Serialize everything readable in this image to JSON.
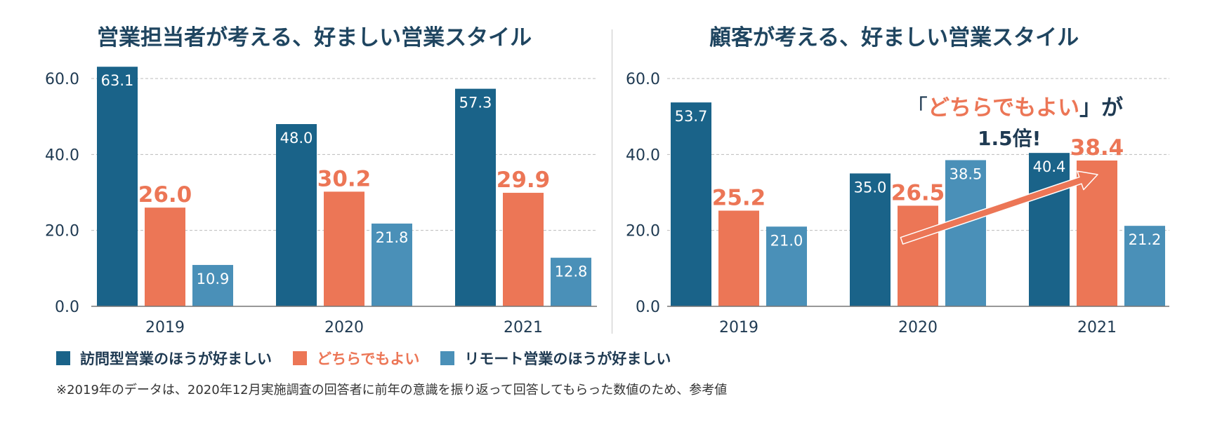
{
  "colors": {
    "visit": "#1a6389",
    "either": "#ec7656",
    "remote": "#4a90b8",
    "title": "#1f4560",
    "axis_text": "#1f3a52",
    "grid": "#bbbbbb"
  },
  "chart_data": [
    {
      "type": "bar",
      "title": "営業担当者が考える、好ましい営業スタイル",
      "categories": [
        "2019",
        "2020",
        "2021"
      ],
      "ylim": [
        0,
        60
      ],
      "yticks": [
        "0.0",
        "20.0",
        "40.0",
        "60.0"
      ],
      "grid": true,
      "series": [
        {
          "name": "訪問型営業のほうが好ましい",
          "values": [
            63.1,
            48.0,
            57.3
          ],
          "labels": [
            "63.1",
            "48.0",
            "57.3"
          ]
        },
        {
          "name": "どちらでもよい",
          "values": [
            26.0,
            30.2,
            29.9
          ],
          "labels": [
            "26.0",
            "30.2",
            "29.9"
          ]
        },
        {
          "name": "リモート営業のほうが好ましい",
          "values": [
            10.9,
            21.8,
            12.8
          ],
          "labels": [
            "10.9",
            "21.8",
            "12.8"
          ]
        }
      ]
    },
    {
      "type": "bar",
      "title": "顧客が考える、好ましい営業スタイル",
      "categories": [
        "2019",
        "2020",
        "2021"
      ],
      "ylim": [
        0,
        60
      ],
      "yticks": [
        "0.0",
        "20.0",
        "40.0",
        "60.0"
      ],
      "grid": true,
      "series": [
        {
          "name": "訪問型営業のほうが好ましい",
          "values": [
            53.7,
            35.0,
            40.4
          ],
          "labels": [
            "53.7",
            "35.0",
            "40.4"
          ]
        },
        {
          "name": "どちらでもよい",
          "values": [
            25.2,
            26.5,
            38.4
          ],
          "labels": [
            "25.2",
            "26.5",
            "38.4"
          ]
        },
        {
          "name": "リモート営業のほうが好ましい",
          "values": [
            21.0,
            38.5,
            21.2
          ],
          "labels": [
            "21.0",
            "38.5",
            "21.2"
          ]
        }
      ],
      "annotations": [
        {
          "text_open": "「",
          "text_highlight": "どちらでもよい",
          "text_close": "」が",
          "text_line2": "1.5倍!",
          "arrow_from": {
            "category": "2020",
            "series": "どちらでもよい"
          },
          "arrow_to": {
            "category": "2021",
            "series": "どちらでもよい"
          }
        }
      ]
    }
  ],
  "legend": [
    {
      "label": "訪問型営業のほうが好ましい",
      "color_key": "visit"
    },
    {
      "label": "どちらでもよい",
      "color_key": "either"
    },
    {
      "label": "リモート営業のほうが好ましい",
      "color_key": "remote"
    }
  ],
  "footnote": "※2019年のデータは、2020年12月実施調査の回答者に前年の意識を振り返って回答してもらった数値のため、参考値"
}
